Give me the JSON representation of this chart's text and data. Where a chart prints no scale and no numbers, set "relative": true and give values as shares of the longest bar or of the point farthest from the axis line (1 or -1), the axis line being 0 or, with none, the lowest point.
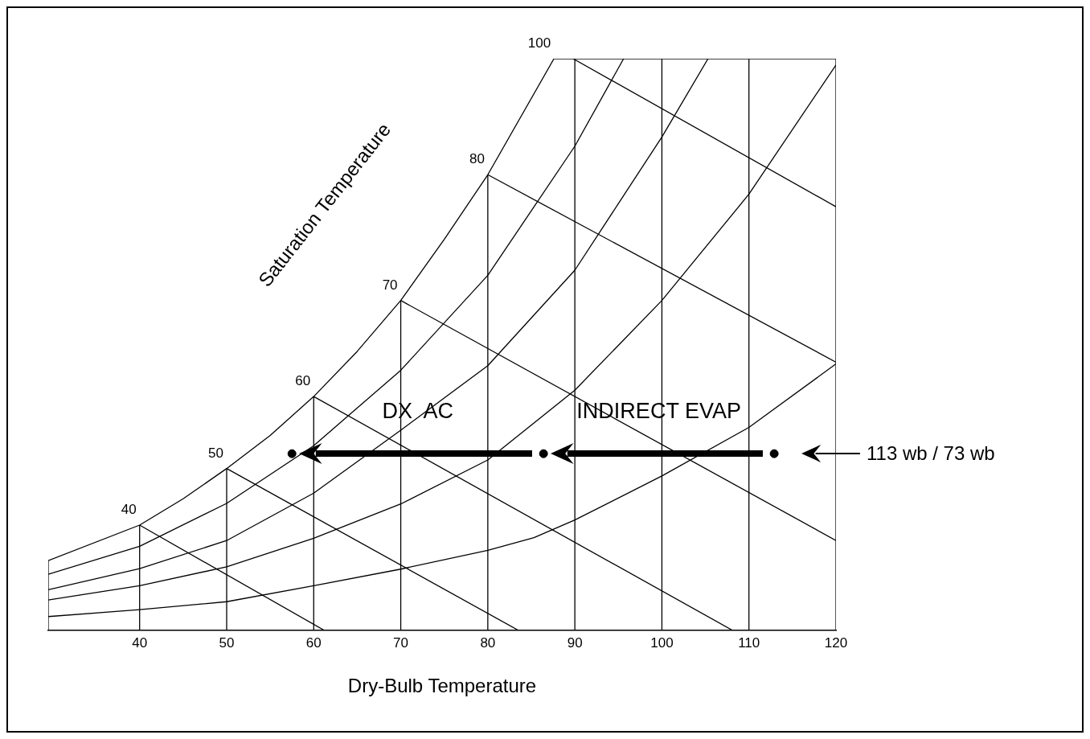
{
  "chart_data": {
    "type": "line",
    "relative": true,
    "xlabel": "Dry-Bulb Temperature",
    "ylabel": "Saturation Temperature",
    "xlim": [
      29.5,
      120
    ],
    "xticks": [
      40,
      50,
      60,
      70,
      80,
      90,
      100,
      110,
      120
    ],
    "annotations": [
      {
        "text": "40",
        "x": 40,
        "y": 0.184
      },
      {
        "text": "50",
        "x": 50,
        "y": 0.283
      },
      {
        "text": "60",
        "x": 60,
        "y": 0.409
      },
      {
        "text": "70",
        "x": 70,
        "y": 0.577
      },
      {
        "text": "80",
        "x": 80,
        "y": 0.797
      },
      {
        "text": "100",
        "x": 87.6,
        "y": 1
      },
      "DX  AC",
      "INDIRECT EVAP",
      "113 wb / 73 wb"
    ],
    "series": [
      {
        "color": "#000000",
        "x": [
          29.5,
          40,
          45,
          50,
          55,
          60,
          65,
          70,
          75,
          80,
          87.6
        ],
        "values": [
          0.122,
          0.184,
          0.23,
          0.283,
          0.341,
          0.409,
          0.488,
          0.577,
          0.684,
          0.797,
          1
        ]
      },
      {
        "color": "#000000",
        "x": [
          29.5,
          40,
          50,
          60,
          70,
          80,
          90,
          95.6
        ],
        "values": [
          0.098,
          0.147,
          0.222,
          0.323,
          0.455,
          0.621,
          0.847,
          1
        ]
      },
      {
        "color": "#000000",
        "x": [
          29.5,
          40,
          50,
          60,
          70,
          80,
          90,
          100,
          105.3
        ],
        "values": [
          0.071,
          0.108,
          0.157,
          0.24,
          0.35,
          0.463,
          0.63,
          0.863,
          1
        ]
      },
      {
        "color": "#000000",
        "x": [
          29.5,
          40,
          50,
          60,
          70,
          80,
          90,
          100,
          110,
          120
        ],
        "values": [
          0.053,
          0.078,
          0.111,
          0.161,
          0.221,
          0.298,
          0.42,
          0.577,
          0.763,
          0.989
        ]
      },
      {
        "color": "#000000",
        "x": [
          29.5,
          40,
          50,
          60,
          70,
          80,
          85.3,
          90,
          100,
          110,
          120
        ],
        "values": [
          0.024,
          0.036,
          0.05,
          0.078,
          0.107,
          0.14,
          0.162,
          0.193,
          0.27,
          0.355,
          0.466
        ]
      },
      {
        "color": "#000000",
        "x": [
          40,
          61.2
        ],
        "values": [
          0.184,
          0
        ]
      },
      {
        "color": "#000000",
        "x": [
          50,
          83.5
        ],
        "values": [
          0.283,
          0
        ]
      },
      {
        "color": "#000000",
        "x": [
          60,
          108.1
        ],
        "values": [
          0.409,
          0
        ]
      },
      {
        "color": "#000000",
        "x": [
          70,
          120
        ],
        "values": [
          0.577,
          0.157
        ]
      },
      {
        "color": "#000000",
        "x": [
          80,
          120
        ],
        "values": [
          0.797,
          0.469
        ]
      },
      {
        "color": "#000000",
        "x": [
          89.8,
          120
        ],
        "values": [
          1,
          0.741
        ]
      },
      {
        "color": "#000000",
        "x": [
          29.5,
          29.5
        ],
        "values": [
          0,
          0.122
        ]
      },
      {
        "color": "#000000",
        "x": [
          40,
          40
        ],
        "values": [
          0,
          0.184
        ]
      },
      {
        "color": "#000000",
        "x": [
          50,
          50
        ],
        "values": [
          0,
          0.283
        ]
      },
      {
        "color": "#000000",
        "x": [
          60,
          60
        ],
        "values": [
          0,
          0.409
        ]
      },
      {
        "color": "#000000",
        "x": [
          70,
          70
        ],
        "values": [
          0,
          0.577
        ]
      },
      {
        "color": "#000000",
        "x": [
          80,
          80
        ],
        "values": [
          0,
          0.797
        ]
      },
      {
        "color": "#000000",
        "x": [
          90,
          90
        ],
        "values": [
          0,
          1
        ]
      },
      {
        "color": "#000000",
        "x": [
          100,
          100
        ],
        "values": [
          0,
          1
        ]
      },
      {
        "color": "#000000",
        "x": [
          110,
          110
        ],
        "values": [
          0,
          1
        ]
      },
      {
        "color": "#000000",
        "x": [
          120,
          120
        ],
        "values": [
          0,
          1
        ]
      },
      {
        "color": "#000000",
        "x": [
          87.6,
          120
        ],
        "values": [
          1,
          1
        ]
      },
      {
        "type": "scatter",
        "marker": "circle",
        "color": "#000000",
        "x": [
          57.5,
          86.4,
          112.9
        ],
        "values": [
          0.309,
          0.309,
          0.309
        ]
      }
    ]
  }
}
